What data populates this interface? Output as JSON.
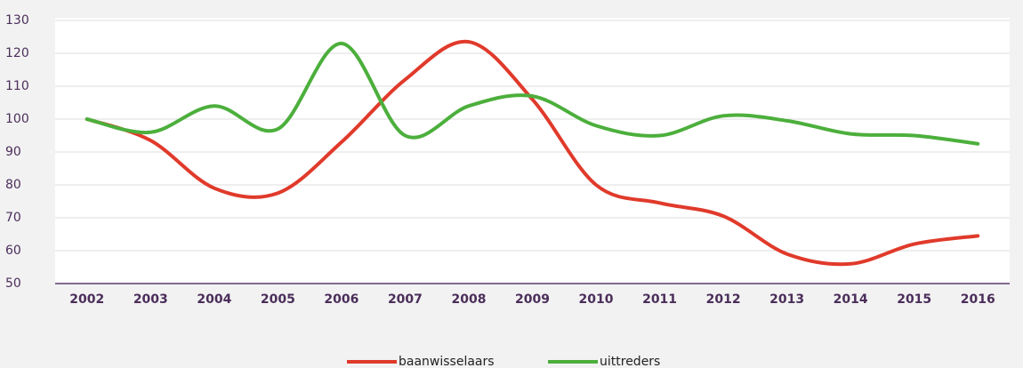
{
  "chart_data": {
    "type": "line",
    "categories": [
      "2002",
      "2003",
      "2004",
      "2005",
      "2006",
      "2007",
      "2008",
      "2009",
      "2010",
      "2011",
      "2012",
      "2013",
      "2014",
      "2015",
      "2016"
    ],
    "series": [
      {
        "name": "baanwisselaars",
        "color": "#e03a2b",
        "values": [
          100,
          93.5,
          79,
          77.5,
          93,
          112,
          123.5,
          106,
          80,
          74.5,
          70.5,
          59,
          56,
          62,
          64.5
        ]
      },
      {
        "name": "uittreders",
        "color": "#4caf3c",
        "values": [
          100,
          96,
          104,
          97,
          123,
          95,
          104,
          107,
          98,
          95,
          101,
          99.5,
          95.5,
          95,
          92.5
        ]
      }
    ],
    "ylim": [
      50,
      130
    ],
    "yticks": [
      50,
      60,
      70,
      80,
      90,
      100,
      110,
      120,
      130
    ],
    "grid": true,
    "legend": "bottom"
  }
}
